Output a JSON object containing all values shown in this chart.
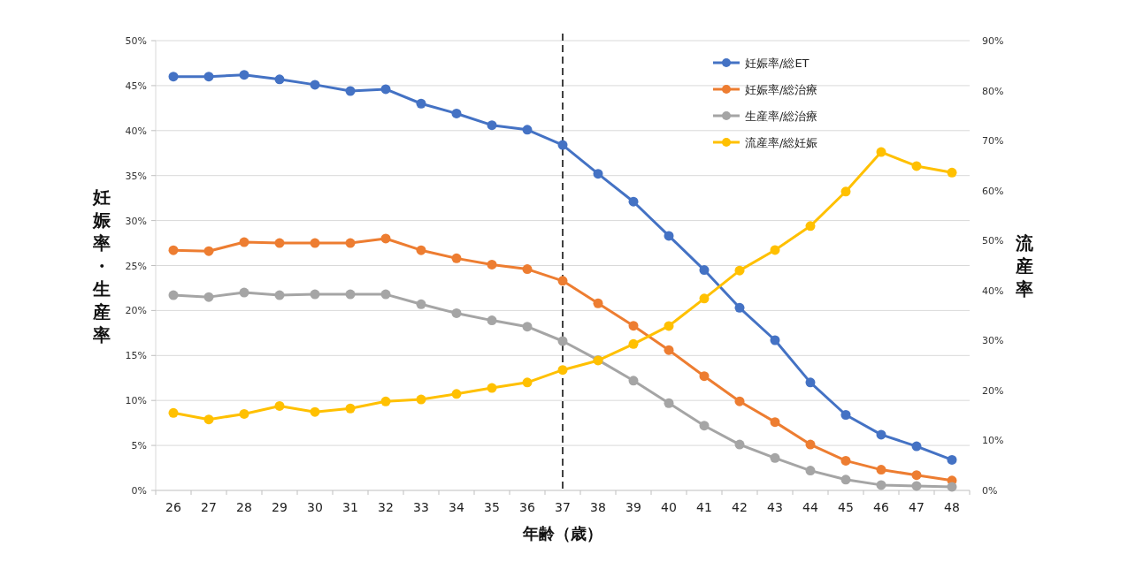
{
  "chart_data": {
    "type": "line",
    "xlabel": "年齢（歳）",
    "ylabel": "妊娠率・生産率",
    "y2label": "流産率",
    "categories": [
      "26",
      "27",
      "28",
      "29",
      "30",
      "31",
      "32",
      "33",
      "34",
      "35",
      "36",
      "37",
      "38",
      "39",
      "40",
      "41",
      "42",
      "43",
      "44",
      "45",
      "46",
      "47",
      "48"
    ],
    "series": [
      {
        "name": "妊娠率/総ET",
        "color": "#4472c4",
        "values": [
          46,
          46,
          46.2,
          45.7,
          45.1,
          44.4,
          44.6,
          43,
          41.9,
          40.6,
          40.1,
          38.4,
          35.2,
          32.1,
          28.3,
          24.5,
          20.3,
          16.7,
          12,
          8.4,
          6.2,
          4.9,
          3.4
        ]
      },
      {
        "name": "妊娠率/総治療",
        "color": "#ed7d31",
        "values": [
          26.7,
          26.6,
          27.6,
          27.5,
          27.5,
          27.5,
          28,
          26.7,
          25.8,
          25.1,
          24.6,
          23.3,
          20.8,
          18.3,
          15.6,
          12.7,
          9.9,
          7.6,
          5.1,
          3.3,
          2.3,
          1.7,
          1.1
        ]
      },
      {
        "name": "生産率/総治療",
        "color": "#a5a5a5",
        "values": [
          21.7,
          21.5,
          22,
          21.7,
          21.8,
          21.8,
          21.8,
          20.7,
          19.7,
          18.9,
          18.2,
          16.6,
          14.5,
          12.2,
          9.7,
          7.2,
          5.1,
          3.6,
          2.2,
          1.2,
          0.6,
          0.5,
          0.4
        ]
      },
      {
        "name": "流産率/総妊娠",
        "color": "#ffc000",
        "axis": "y2",
        "values": [
          15.5,
          14.2,
          15.3,
          16.9,
          15.7,
          16.4,
          17.8,
          18.2,
          19.3,
          20.5,
          21.6,
          24.1,
          26,
          29.3,
          32.9,
          38.4,
          44,
          48.1,
          52.9,
          59.8,
          67.7,
          64.9,
          63.6
        ]
      }
    ],
    "ylim": [
      0,
      50
    ],
    "yticks": [
      {
        "value": 0,
        "label": "0%"
      },
      {
        "value": 5,
        "label": "5%"
      },
      {
        "value": 10,
        "label": "10%"
      },
      {
        "value": 15,
        "label": "15%"
      },
      {
        "value": 20,
        "label": "20%"
      },
      {
        "value": 25,
        "label": "25%"
      },
      {
        "value": 30,
        "label": "30%"
      },
      {
        "value": 35,
        "label": "35%"
      },
      {
        "value": 40,
        "label": "40%"
      },
      {
        "value": 45,
        "label": "45%"
      },
      {
        "value": 50,
        "label": "50%"
      }
    ],
    "y2lim": [
      0,
      90
    ],
    "y2ticks": [
      {
        "value": 0,
        "label": "0%"
      },
      {
        "value": 10,
        "label": "10%"
      },
      {
        "value": 20,
        "label": "20%"
      },
      {
        "value": 30,
        "label": "30%"
      },
      {
        "value": 40,
        "label": "40%"
      },
      {
        "value": 50,
        "label": "50%"
      },
      {
        "value": 60,
        "label": "60%"
      },
      {
        "value": 70,
        "label": "70%"
      },
      {
        "value": 80,
        "label": "80%"
      },
      {
        "value": 90,
        "label": "90%"
      }
    ],
    "ref_lines": [
      {
        "axis": "x",
        "value": "37",
        "color": "#404040",
        "line_style": "dashed"
      }
    ],
    "grid": "y",
    "legend": "top right",
    "marker": "circle",
    "line_style": "solid"
  }
}
